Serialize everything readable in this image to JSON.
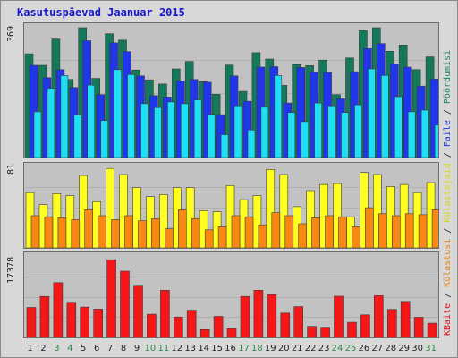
{
  "title": "Kasutuspäevad Jaanuar 2015",
  "colors": {
    "hits": "#14795a",
    "files": "#1f36ea",
    "pages": "#1edff4",
    "visits": "#ffff1f",
    "sites": "#f98713",
    "kbytes": "#f51617",
    "weekend_label": "#2c8a48",
    "weekday_label": "#222222"
  },
  "legend": [
    {
      "label": "KBaite",
      "color": "#e31414"
    },
    {
      "label": "Külastusi",
      "color": "#e88214"
    },
    {
      "label": "Külastajaid",
      "color": "#d8d814"
    },
    {
      "label": "Faile",
      "color": "#1f36ea"
    },
    {
      "label": "Pöördumisi",
      "color": "#1e8a62"
    }
  ],
  "legend_separator": " / ",
  "chart_data": [
    {
      "type": "bar",
      "title": "",
      "categories": [
        "1",
        "2",
        "3",
        "4",
        "5",
        "6",
        "7",
        "8",
        "9",
        "10",
        "11",
        "12",
        "13",
        "14",
        "15",
        "16",
        "17",
        "18",
        "19",
        "20",
        "21",
        "22",
        "23",
        "24",
        "25",
        "26",
        "27",
        "28",
        "29",
        "30",
        "31"
      ],
      "ymax_label": "369",
      "ylim": [
        0,
        369
      ],
      "series": [
        {
          "key": "hits",
          "values": [
            295,
            262,
            337,
            222,
            369,
            225,
            352,
            334,
            249,
            221,
            209,
            252,
            273,
            216,
            180,
            263,
            188,
            298,
            280,
            205,
            264,
            261,
            277,
            179,
            283,
            361,
            369,
            302,
            320,
            250,
            286
          ]
        },
        {
          "key": "files",
          "values": [
            262,
            227,
            250,
            199,
            332,
            179,
            326,
            301,
            232,
            176,
            172,
            218,
            222,
            214,
            122,
            232,
            160,
            257,
            258,
            155,
            256,
            243,
            242,
            167,
            244,
            310,
            324,
            266,
            257,
            203,
            223
          ]
        },
        {
          "key": "pages",
          "values": [
            130,
            197,
            233,
            121,
            206,
            105,
            250,
            236,
            153,
            142,
            158,
            153,
            164,
            123,
            65,
            147,
            78,
            143,
            233,
            128,
            102,
            155,
            147,
            128,
            150,
            252,
            233,
            173,
            130,
            135,
            92
          ]
        }
      ]
    },
    {
      "type": "bar",
      "title": "",
      "categories": [
        "1",
        "2",
        "3",
        "4",
        "5",
        "6",
        "7",
        "8",
        "9",
        "10",
        "11",
        "12",
        "13",
        "14",
        "15",
        "16",
        "17",
        "18",
        "19",
        "20",
        "21",
        "22",
        "23",
        "24",
        "25",
        "26",
        "27",
        "28",
        "29",
        "30",
        "31"
      ],
      "ymax_label": "81",
      "ylim": [
        0,
        81
      ],
      "series": [
        {
          "key": "visits",
          "values": [
            55,
            43,
            54,
            52,
            72,
            46,
            79,
            73,
            60,
            51,
            53,
            60,
            60,
            37,
            36,
            62,
            48,
            52,
            78,
            73,
            41,
            57,
            63,
            64,
            31,
            75,
            73,
            61,
            63,
            55,
            65
          ]
        },
        {
          "key": "sites",
          "values": [
            32,
            31,
            30,
            28,
            38,
            32,
            28,
            32,
            27,
            29,
            19,
            38,
            29,
            18,
            21,
            32,
            31,
            23,
            35,
            32,
            24,
            30,
            32,
            31,
            21,
            40,
            34,
            32,
            34,
            33,
            38
          ]
        }
      ]
    },
    {
      "type": "bar",
      "title": "",
      "categories": [
        "1",
        "2",
        "3",
        "4",
        "5",
        "6",
        "7",
        "8",
        "9",
        "10",
        "11",
        "12",
        "13",
        "14",
        "15",
        "16",
        "17",
        "18",
        "19",
        "20",
        "21",
        "22",
        "23",
        "24",
        "25",
        "26",
        "27",
        "28",
        "29",
        "30",
        "31"
      ],
      "ymax_label": "17378",
      "ylim": [
        0,
        17378
      ],
      "series": [
        {
          "key": "kbytes",
          "values": [
            6390,
            8750,
            11690,
            7500,
            6480,
            6030,
            16580,
            14130,
            11140,
            4940,
            10070,
            4360,
            5810,
            1670,
            4480,
            1890,
            8750,
            10070,
            9130,
            5190,
            6560,
            2350,
            2150,
            8780,
            3230,
            4810,
            8890,
            5970,
            7680,
            4290,
            3040
          ]
        }
      ]
    }
  ]
}
